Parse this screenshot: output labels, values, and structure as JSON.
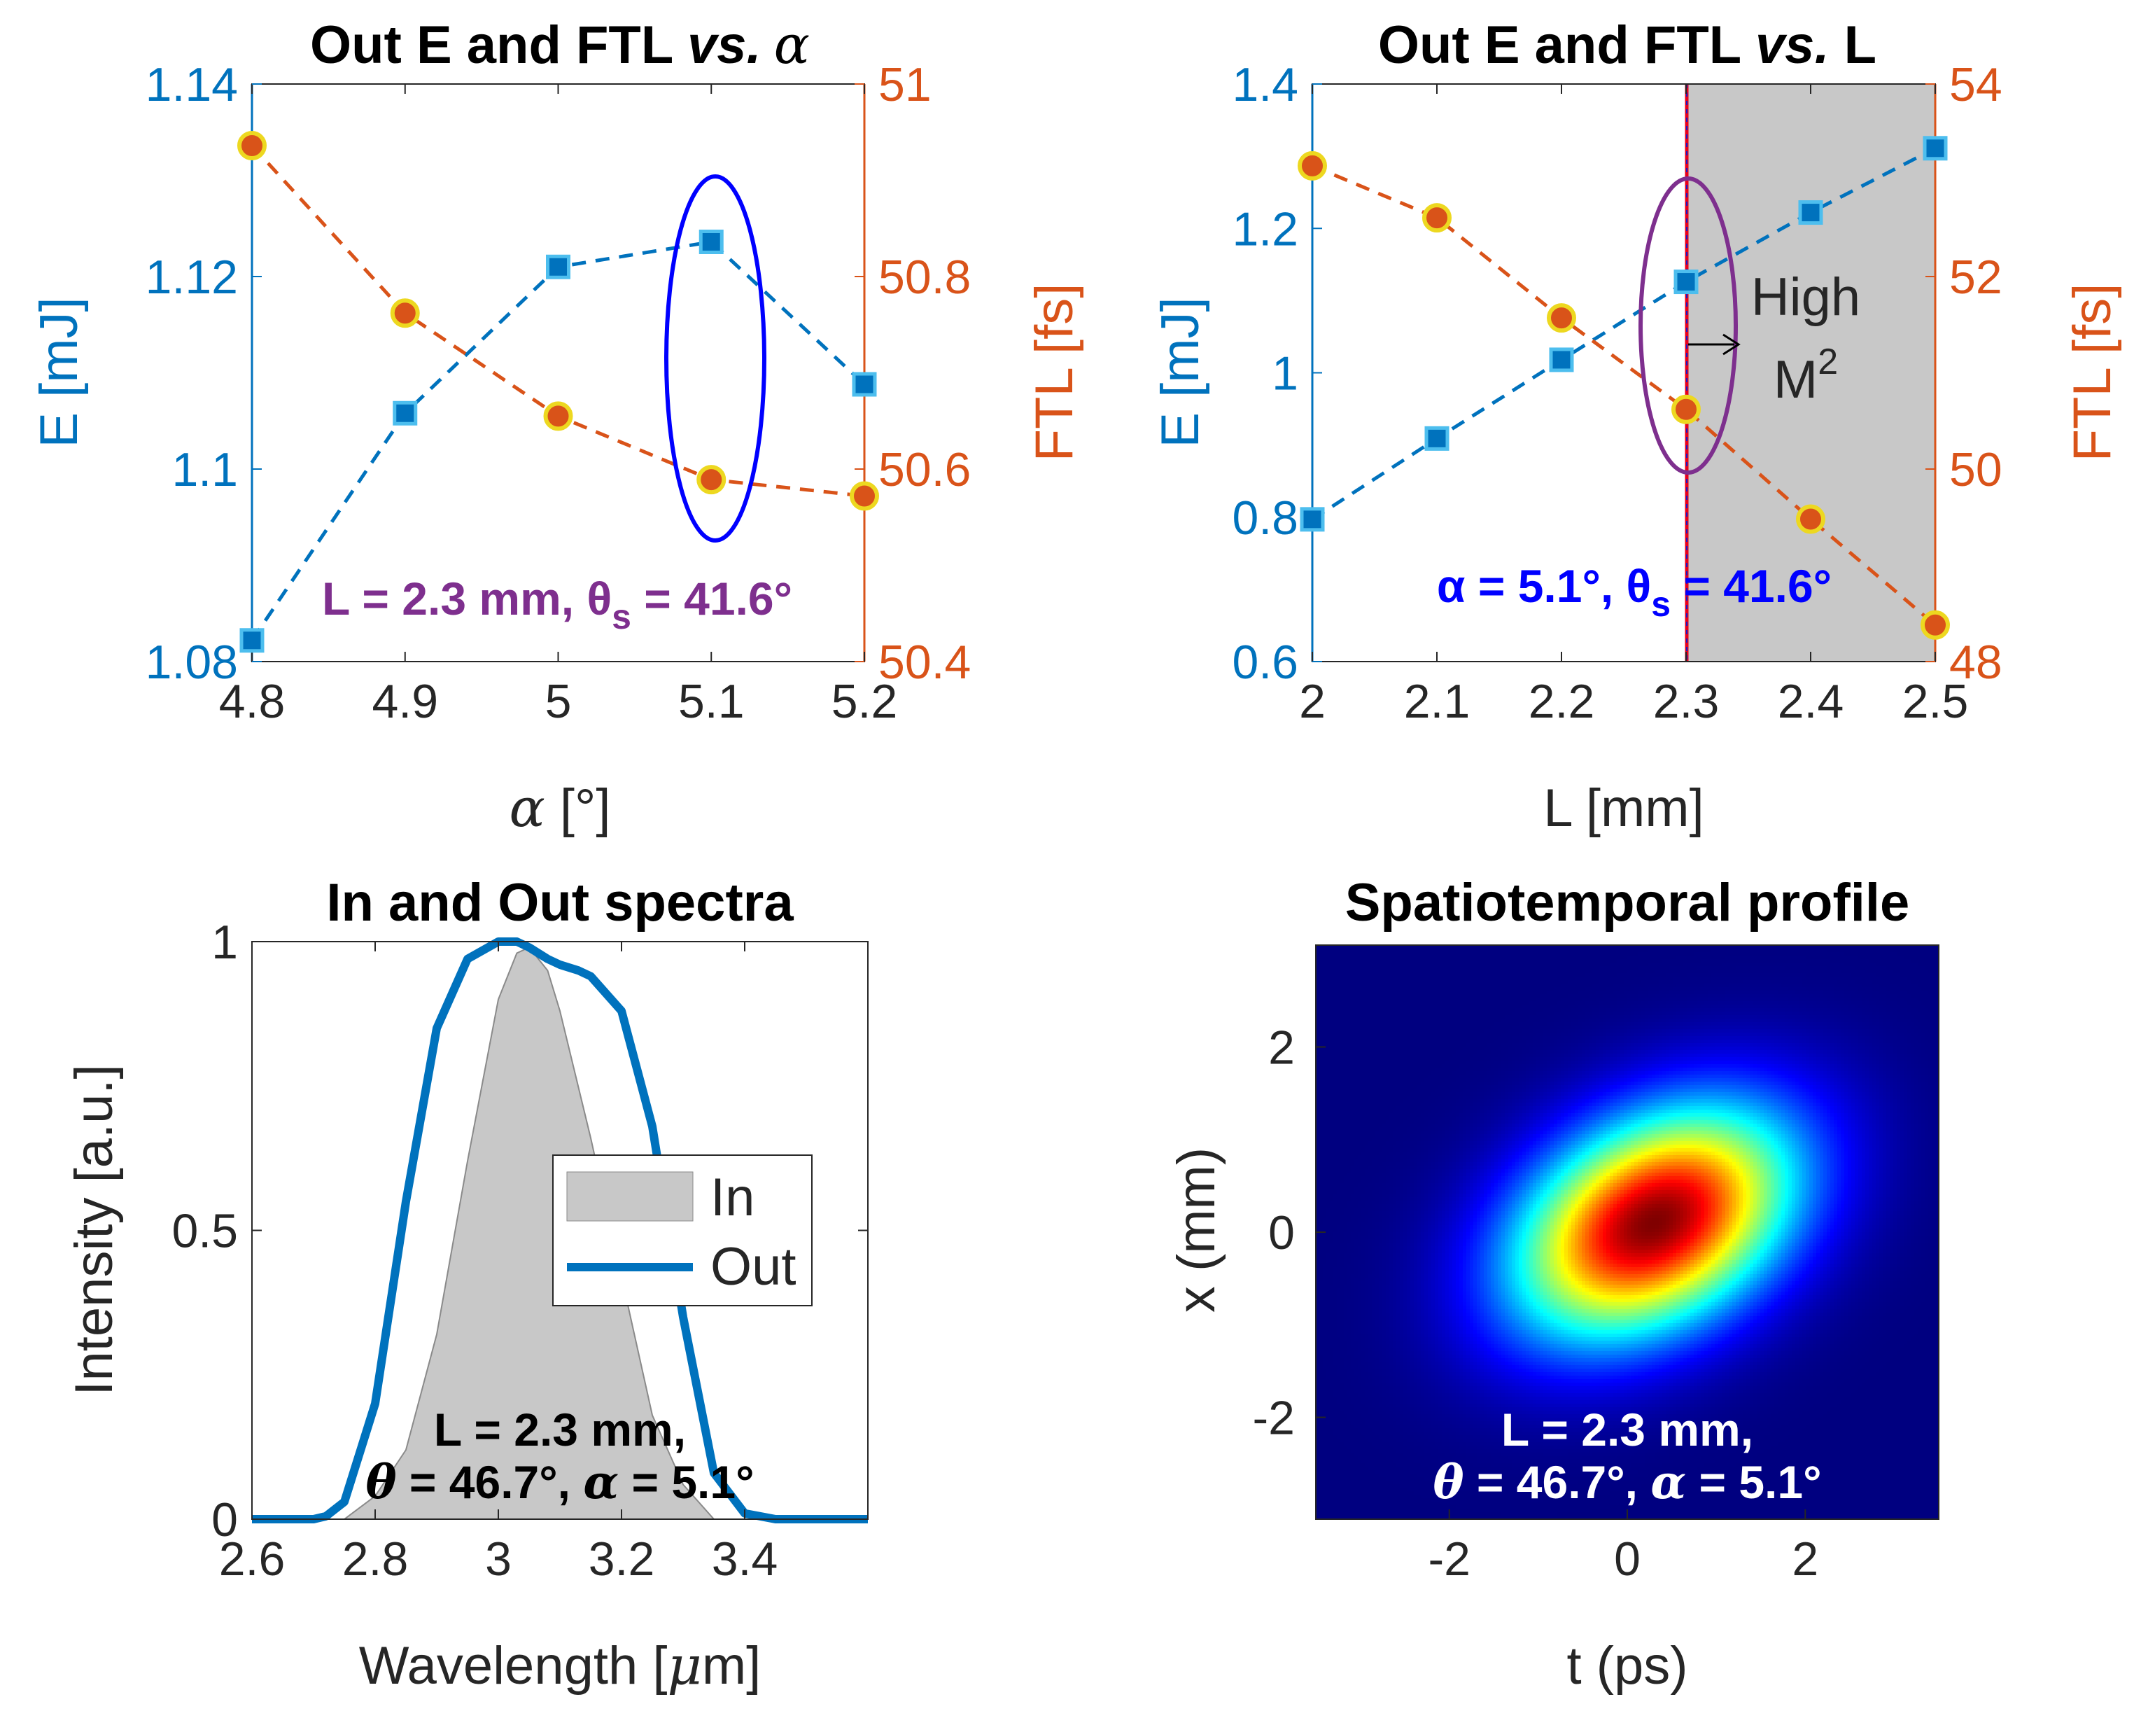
{
  "colors": {
    "left_axis": "#0072BD",
    "right_axis": "#D95319",
    "square_face": "#0072BD",
    "square_edge": "#4DBEEE",
    "circle_face": "#D95319",
    "circle_edge": "#EDD820",
    "highlight_ellipse": "#0000FF",
    "ellipse_purple": "#7E2F8E",
    "annotation_purple": "#7E2F8E",
    "annotation_blue": "#0000FF",
    "shade": "#C8C8C8",
    "out_line": "#0072BD",
    "in_fill": "#C8C8C8"
  },
  "chart_data": [
    {
      "id": "panel-a",
      "type": "line",
      "title": "Out E and FTL ",
      "title_italic": "vs.",
      "title_symbol": "α",
      "xlabel_symbol": "α",
      "xlabel_unit": " [°]",
      "ylabel_left": "E [mJ]",
      "ylabel_right": "FTL [fs]",
      "xlim": [
        4.8,
        5.2
      ],
      "ylim_left": [
        1.08,
        1.14
      ],
      "ylim_right": [
        50.4,
        51.0
      ],
      "xticks": [
        "4.8",
        "4.9",
        "5",
        "5.1",
        "5.2"
      ],
      "xtick_values": [
        4.8,
        4.9,
        5.0,
        5.1,
        5.2
      ],
      "yticks_left": [
        "1.08",
        "1.1",
        "1.12",
        "1.14"
      ],
      "ytick_values_left": [
        1.08,
        1.1,
        1.12,
        1.14
      ],
      "yticks_right": [
        "50.4",
        "50.6",
        "50.8",
        "51"
      ],
      "ytick_values_right": [
        50.4,
        50.6,
        50.8,
        51.0
      ],
      "series": [
        {
          "name": "E",
          "axis": "left",
          "marker": "square",
          "x": [
            4.8,
            4.9,
            5.0,
            5.1,
            5.2
          ],
          "y": [
            1.0822,
            1.1058,
            1.121,
            1.1236,
            1.1088
          ]
        },
        {
          "name": "FTL",
          "axis": "right",
          "marker": "circle",
          "x": [
            4.8,
            4.9,
            5.0,
            5.1,
            5.2
          ],
          "y": [
            50.936,
            50.762,
            50.655,
            50.589,
            50.572
          ]
        }
      ],
      "highlight_x": 5.1,
      "annotation": "L = 2.3 mm, θ",
      "annotation_sub": "s",
      "annotation_rest": " = 41.6°"
    },
    {
      "id": "panel-b",
      "type": "line",
      "title": "Out E and FTL ",
      "title_italic": "vs.",
      "title_symbol": " L",
      "xlabel": "L [mm]",
      "ylabel_left": "E [mJ]",
      "ylabel_right": "FTL [fs]",
      "xlim": [
        2.0,
        2.5
      ],
      "ylim_left": [
        0.6,
        1.4
      ],
      "ylim_right": [
        48,
        54
      ],
      "xticks": [
        "2",
        "2.1",
        "2.2",
        "2.3",
        "2.4",
        "2.5"
      ],
      "xtick_values": [
        2.0,
        2.1,
        2.2,
        2.3,
        2.4,
        2.5
      ],
      "yticks_left": [
        "0.6",
        "0.8",
        "1",
        "1.2",
        "1.4"
      ],
      "ytick_values_left": [
        0.6,
        0.8,
        1.0,
        1.2,
        1.4
      ],
      "yticks_right": [
        "48",
        "50",
        "52",
        "54"
      ],
      "ytick_values_right": [
        48,
        50,
        52,
        54
      ],
      "series": [
        {
          "name": "E",
          "axis": "left",
          "marker": "square",
          "x": [
            2.0,
            2.1,
            2.2,
            2.3,
            2.4,
            2.5
          ],
          "y": [
            0.797,
            0.909,
            1.018,
            1.126,
            1.222,
            1.311
          ]
        },
        {
          "name": "FTL",
          "axis": "right",
          "marker": "circle",
          "x": [
            2.0,
            2.1,
            2.2,
            2.3,
            2.4,
            2.5
          ],
          "y": [
            53.15,
            52.61,
            51.57,
            50.62,
            49.48,
            48.38
          ]
        }
      ],
      "shaded_region_x": [
        2.3,
        2.5
      ],
      "highlight_x": 2.3,
      "region_label_line1": "High",
      "region_label_line2": "M",
      "region_label_sup": "2",
      "annotation": "α = 5.1°, θ",
      "annotation_sub": "s",
      "annotation_rest": " = 41.6°"
    },
    {
      "id": "panel-c",
      "type": "area",
      "title": "In and Out spectra",
      "xlabel": "Wavelength [",
      "xlabel_symbol": "μ",
      "xlabel_unit": "m]",
      "ylabel": "Intensity [a.u.]",
      "xlim": [
        2.6,
        3.6
      ],
      "ylim": [
        0,
        1
      ],
      "xticks": [
        "2.6",
        "2.8",
        "3",
        "3.2",
        "3.4"
      ],
      "xtick_values": [
        2.6,
        2.8,
        3.0,
        3.2,
        3.4
      ],
      "yticks": [
        "0",
        "0.5",
        "1"
      ],
      "ytick_values": [
        0,
        0.5,
        1
      ],
      "series": [
        {
          "name": "In",
          "style": "filled",
          "x": [
            2.75,
            2.8,
            2.85,
            2.9,
            2.95,
            3.0,
            3.03,
            3.05,
            3.08,
            3.1,
            3.15,
            3.2,
            3.25,
            3.3,
            3.35
          ],
          "y": [
            0.0,
            0.04,
            0.12,
            0.32,
            0.62,
            0.9,
            0.98,
            0.99,
            0.95,
            0.88,
            0.66,
            0.42,
            0.18,
            0.06,
            0.0
          ]
        },
        {
          "name": "Out",
          "style": "line",
          "x": [
            2.6,
            2.7,
            2.72,
            2.75,
            2.8,
            2.85,
            2.9,
            2.95,
            3.0,
            3.03,
            3.05,
            3.08,
            3.1,
            3.13,
            3.15,
            3.2,
            3.25,
            3.3,
            3.35,
            3.4,
            3.45,
            3.6
          ],
          "y": [
            0.0,
            0.0,
            0.005,
            0.03,
            0.2,
            0.55,
            0.85,
            0.97,
            1.0,
            1.0,
            0.99,
            0.97,
            0.96,
            0.95,
            0.94,
            0.88,
            0.68,
            0.35,
            0.08,
            0.01,
            0.0,
            0.0
          ]
        }
      ],
      "legend": [
        "In",
        "Out"
      ],
      "legend_position": "center-right",
      "annotation_line1": "L = 2.3 mm,",
      "annotation_line2_a": "θ",
      "annotation_line2_b": " = 46.7°, ",
      "annotation_line2_c": "α",
      "annotation_line2_d": " = 5.1°"
    },
    {
      "id": "panel-d",
      "type": "heatmap",
      "title": "Spatiotemporal profile",
      "xlabel": "t (ps)",
      "ylabel": "x (mm)",
      "xlim": [
        -3.5,
        3.5
      ],
      "ylim": [
        -3.1,
        3.1
      ],
      "xticks": [
        "-2",
        "0",
        "2"
      ],
      "xtick_values": [
        -2,
        0,
        2
      ],
      "yticks": [
        "-2",
        "0",
        "2"
      ],
      "ytick_values": [
        -2,
        0,
        2
      ],
      "colormap": "jet",
      "gaussian": {
        "center_t": 0.3,
        "center_x": 0.1,
        "sigma_major": 1.7,
        "sigma_minor": 1.1,
        "tilt_deg": 28
      },
      "annotation_line1": "L = 2.3 mm,",
      "annotation_line2_a": "θ",
      "annotation_line2_b": " = 46.7°, ",
      "annotation_line2_c": "α",
      "annotation_line2_d": " = 5.1°"
    }
  ]
}
